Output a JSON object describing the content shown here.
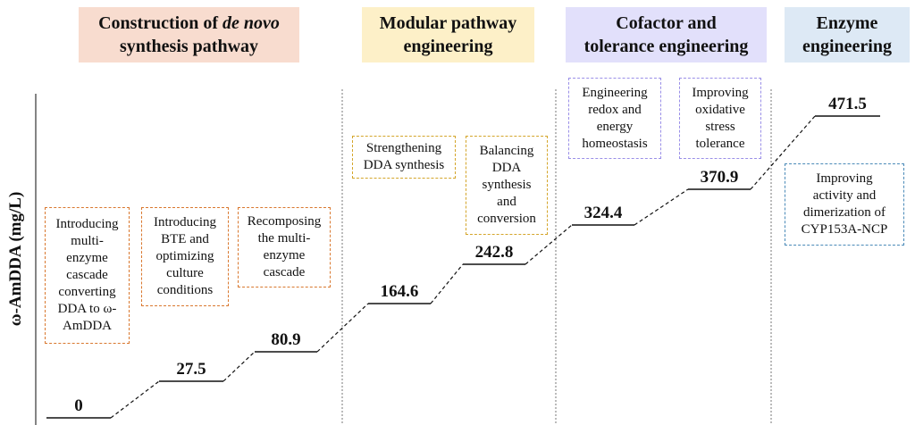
{
  "y_axis_label": "ω-AmDDA (mg/L)",
  "phases": [
    {
      "title": [
        "Construction of",
        "de novo",
        "synthesis pathway"
      ],
      "boxes": [
        [
          "Introducing",
          "multi-",
          "enzyme",
          "cascade",
          "converting",
          "DDA to ω-",
          "AmDDA"
        ],
        [
          "Introducing",
          "BTE and",
          "optimizing",
          "culture",
          "conditions"
        ],
        [
          "Recomposing",
          "the multi-",
          "enzyme",
          "cascade"
        ]
      ]
    },
    {
      "title": [
        "Modular pathway",
        "engineering"
      ],
      "boxes": [
        [
          "Strengthening",
          "DDA synthesis"
        ],
        [
          "Balancing",
          "DDA",
          "synthesis",
          "and",
          "conversion"
        ]
      ]
    },
    {
      "title": [
        "Cofactor and",
        "tolerance engineering"
      ],
      "boxes": [
        [
          "Engineering",
          "redox and",
          "energy",
          "homeostasis"
        ],
        [
          "Improving",
          "oxidative",
          "stress",
          "tolerance"
        ]
      ]
    },
    {
      "title": [
        "Enzyme",
        "engineering"
      ],
      "boxes": [
        [
          "Improving",
          "activity and",
          "dimerization of",
          "CYP153A-NCP"
        ]
      ]
    }
  ],
  "steps": [
    0,
    27.5,
    80.9,
    164.6,
    242.8,
    324.4,
    370.9,
    471.5
  ]
}
